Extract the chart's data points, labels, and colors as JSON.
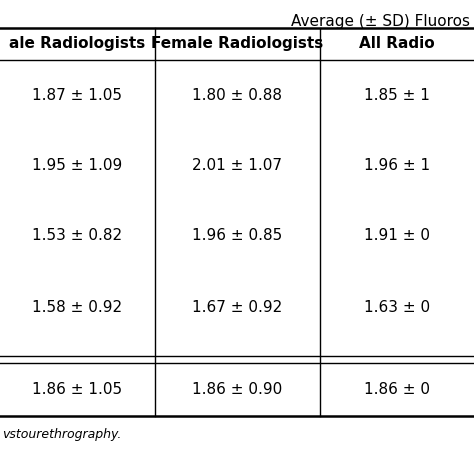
{
  "title": "Average (± SD) Fluoros",
  "col_headers": [
    "ale Radiologists",
    "Female Radiologists",
    "All Radio"
  ],
  "rows": [
    [
      "1.87 ± 1.05",
      "1.80 ± 0.88",
      "1.85 ± 1"
    ],
    [
      "1.95 ± 1.09",
      "2.01 ± 1.07",
      "1.96 ± 1"
    ],
    [
      "1.53 ± 0.82",
      "1.96 ± 0.85",
      "1.91 ± 0"
    ],
    [
      "1.58 ± 0.92",
      "1.67 ± 0.92",
      "1.63 ± 0"
    ],
    [
      "1.86 ± 1.05",
      "1.86 ± 0.90",
      "1.86 ± 0"
    ]
  ],
  "footer": "vstourethrography.",
  "bg_color": "#ffffff",
  "text_color": "#000000",
  "line_color": "#000000",
  "font_size": 11,
  "header_font_size": 11,
  "title_font_size": 11
}
